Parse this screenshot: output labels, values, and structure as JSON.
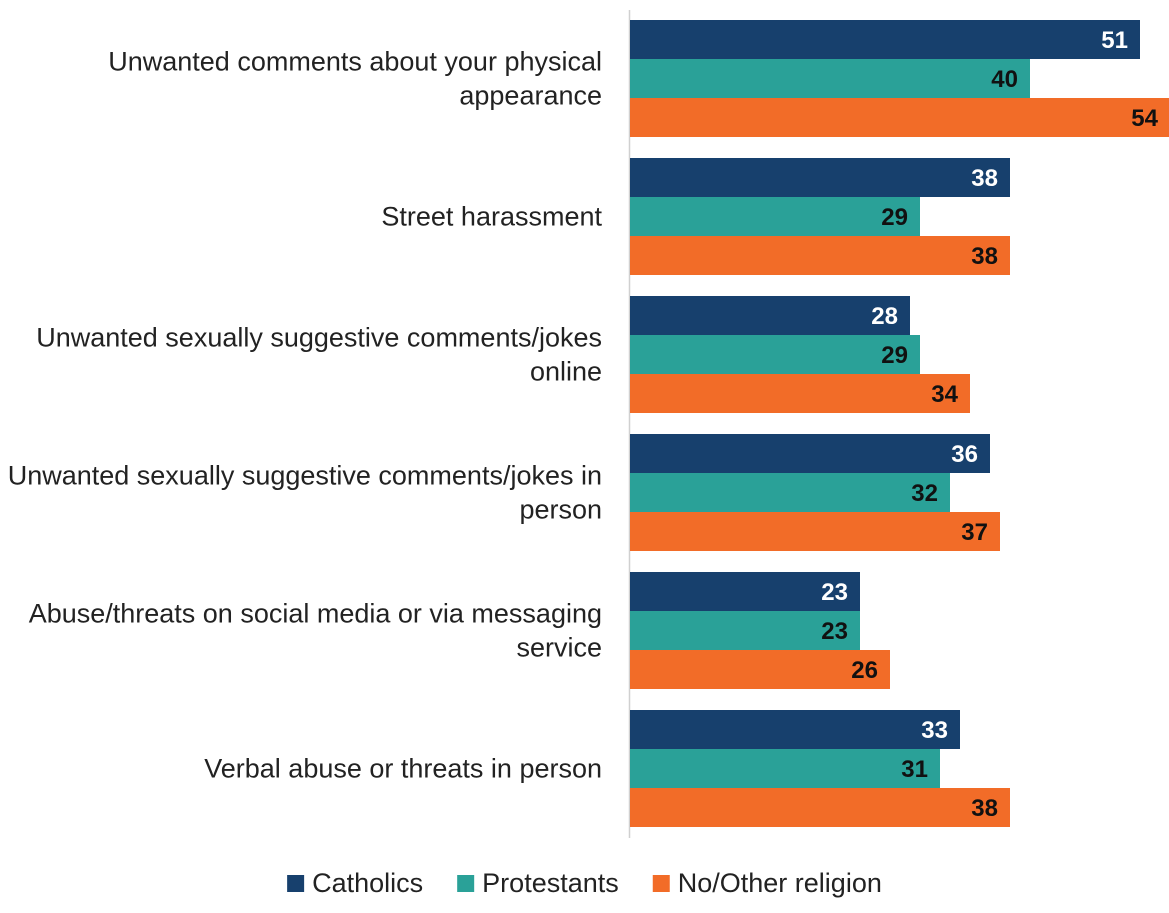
{
  "chart_data": {
    "type": "bar",
    "orientation": "horizontal",
    "categories": [
      "Unwanted comments about your physical appearance",
      "Street harassment",
      "Unwanted sexually suggestive comments/jokes online",
      "Unwanted sexually suggestive comments/jokes in person",
      "Abuse/threats on social media or via messaging service",
      "Verbal abuse or threats in person"
    ],
    "series": [
      {
        "name": "Catholics",
        "color": "#17406d",
        "label_color": "#ffffff",
        "values": [
          51,
          38,
          28,
          36,
          23,
          33
        ]
      },
      {
        "name": "Protestants",
        "color": "#2aa198",
        "label_color": "#111111",
        "values": [
          40,
          29,
          29,
          32,
          23,
          31
        ]
      },
      {
        "name": "No/Other religion",
        "color": "#f26c28",
        "label_color": "#111111",
        "values": [
          54,
          38,
          34,
          37,
          26,
          38
        ]
      }
    ],
    "xlim": [
      0,
      54
    ],
    "grid": false,
    "legend_position": "bottom"
  }
}
